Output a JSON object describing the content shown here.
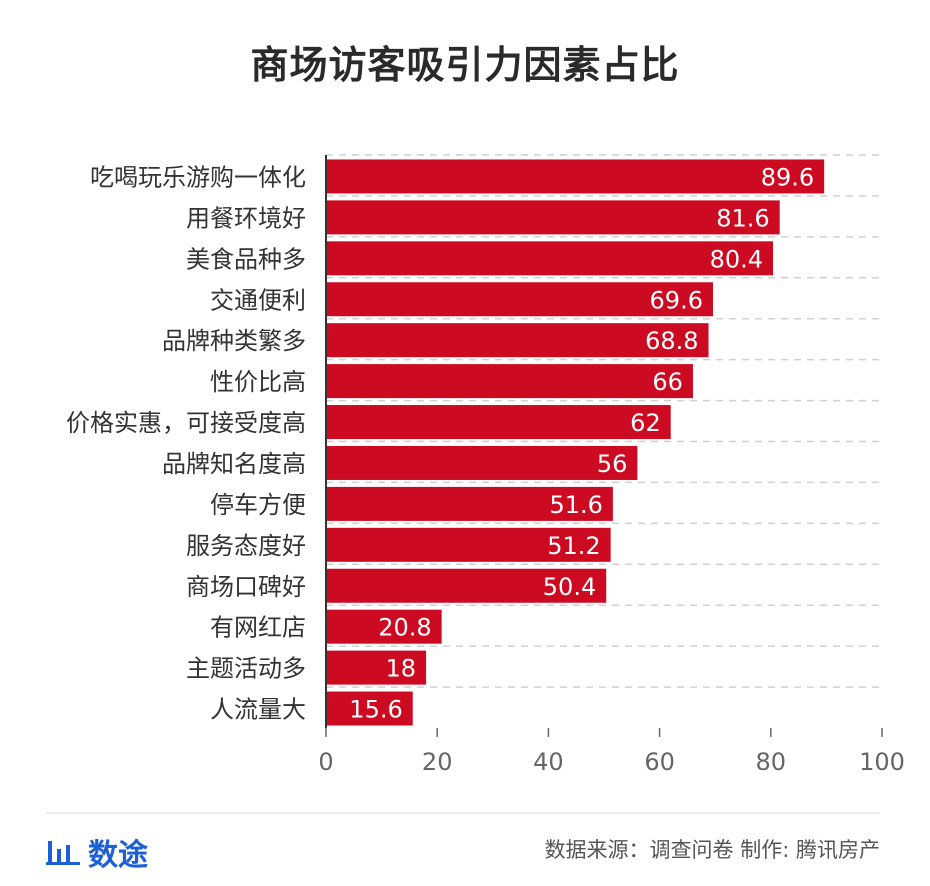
{
  "title": "商场访客吸引力因素占比",
  "chart_data": {
    "type": "bar",
    "orientation": "horizontal",
    "title": "商场访客吸引力因素占比",
    "categories": [
      "吃喝玩乐游购一体化",
      "用餐环境好",
      "美食品种多",
      "交通便利",
      "品牌种类繁多",
      "性价比高",
      "价格实惠，可接受度高",
      "品牌知名度高",
      "停车方便",
      "服务态度好",
      "商场口碑好",
      "有网红店",
      "主题活动多",
      "人流量大"
    ],
    "values": [
      89.6,
      81.6,
      80.4,
      69.6,
      68.8,
      66,
      62,
      56,
      51.6,
      51.2,
      50.4,
      20.8,
      18,
      15.6
    ],
    "value_labels": [
      "89.6",
      "81.6",
      "80.4",
      "69.6",
      "68.8",
      "66",
      "62",
      "56",
      "51.6",
      "51.2",
      "50.4",
      "20.8",
      "18",
      "15.6"
    ],
    "xlim": [
      0,
      100
    ],
    "xticks": [
      "0",
      "20",
      "40",
      "60",
      "80",
      "100"
    ],
    "xlabel": "",
    "ylabel": "",
    "grid": "dashed horizontal",
    "bar_color": "#cc0a22",
    "label_color": "#ffffff"
  },
  "footer": {
    "brand_icon": "bar-chart-icon",
    "brand_name": "数途",
    "source_text": "数据来源：调查问卷",
    "credit_text": "制作: 腾讯房产",
    "brand_color": "#1d5fd6"
  }
}
